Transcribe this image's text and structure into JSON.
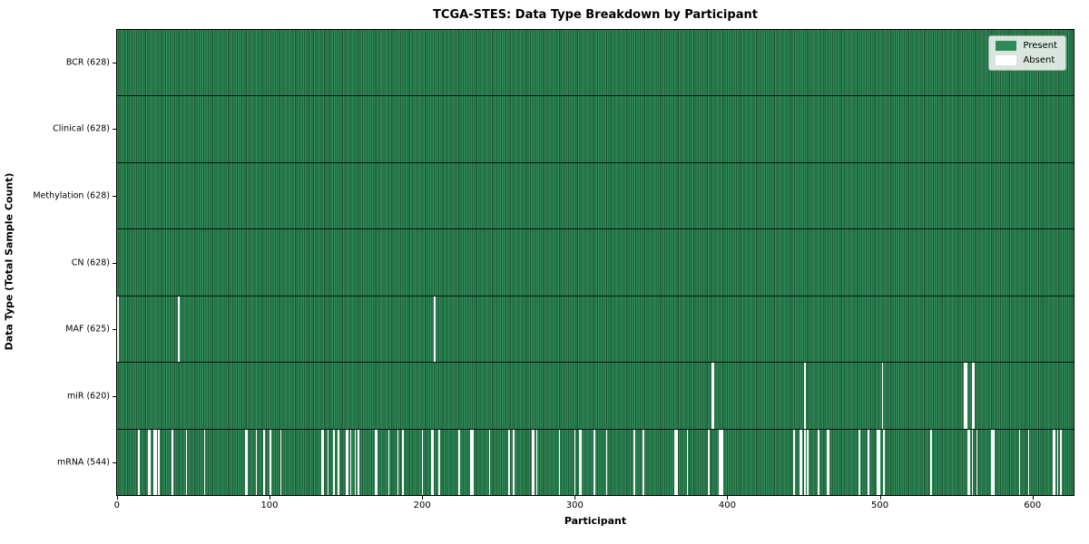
{
  "title": "TCGA-STES: Data Type Breakdown by Participant",
  "chart_data": {
    "type": "heatmap",
    "title": "TCGA-STES: Data Type Breakdown by Participant",
    "xlabel": "Participant",
    "ylabel": "Data Type (Total Sample Count)",
    "x_ticks": [
      0,
      100,
      200,
      300,
      400,
      500,
      600
    ],
    "n_participants": 628,
    "grid": false,
    "legend": {
      "position": "upper right",
      "entries": [
        {
          "label": "Present",
          "color": "#2e8b57"
        },
        {
          "label": "Absent",
          "color": "#ffffff"
        }
      ]
    },
    "colors": {
      "present_fill": "#2e8b57",
      "present_edge": "#1e5c39",
      "absent_fill": "#ffffff",
      "row_divider": "#000000"
    },
    "rows": [
      {
        "label": "BCR (628)",
        "data_type": "BCR",
        "present_count": 628,
        "absent_participants": []
      },
      {
        "label": "Clinical (628)",
        "data_type": "Clinical",
        "present_count": 628,
        "absent_participants": []
      },
      {
        "label": "Methylation (628)",
        "data_type": "Methylation",
        "present_count": 628,
        "absent_participants": []
      },
      {
        "label": "CN (628)",
        "data_type": "CN",
        "present_count": 628,
        "absent_participants": []
      },
      {
        "label": "MAF (625)",
        "data_type": "MAF",
        "present_count": 625,
        "absent_participants": [
          0,
          40,
          208
        ]
      },
      {
        "label": "miR (620)",
        "data_type": "miR",
        "present_count": 620,
        "absent_participants": [
          390,
          391,
          451,
          502,
          556,
          557,
          561,
          562
        ]
      },
      {
        "label": "mRNA (544)",
        "data_type": "mRNA",
        "present_count": 544,
        "absent_participants": [
          14,
          20,
          21,
          24,
          25,
          27,
          36,
          45,
          57,
          84,
          85,
          91,
          96,
          100,
          107,
          134,
          135,
          138,
          142,
          145,
          150,
          151,
          153,
          156,
          158,
          169,
          170,
          178,
          184,
          187,
          200,
          206,
          207,
          211,
          224,
          232,
          233,
          244,
          257,
          260,
          272,
          273,
          275,
          290,
          300,
          303,
          304,
          313,
          321,
          339,
          345,
          366,
          367,
          374,
          388,
          395,
          396,
          397,
          444,
          448,
          449,
          451,
          453,
          460,
          466,
          467,
          487,
          493,
          499,
          500,
          503,
          534,
          558,
          559,
          561,
          564,
          574,
          575,
          592,
          598,
          614,
          615,
          617,
          619
        ]
      }
    ]
  }
}
